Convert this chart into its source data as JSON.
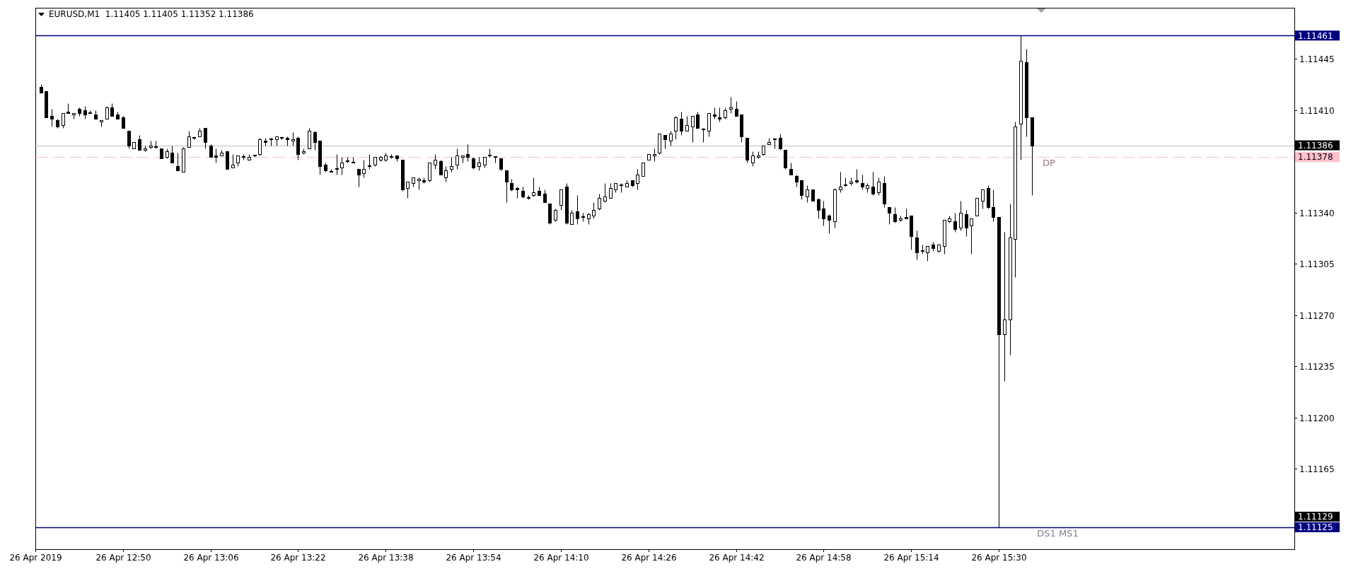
{
  "chart_data": {
    "type": "candlestick",
    "title": "EURUSD,M1  1.11405 1.11405 1.11352 1.11386",
    "color": "#000000",
    "x": [
      "2019-04-26T12:35",
      "2019-04-26T12:36",
      "2019-04-26T12:37",
      "2019-04-26T12:38",
      "2019-04-26T12:39",
      "2019-04-26T12:40",
      "2019-04-26T12:41",
      "2019-04-26T12:42",
      "2019-04-26T12:43",
      "2019-04-26T12:44",
      "2019-04-26T12:45",
      "2019-04-26T12:46",
      "2019-04-26T12:47",
      "2019-04-26T12:48",
      "2019-04-26T12:49",
      "2019-04-26T12:50",
      "2019-04-26T12:51",
      "2019-04-26T12:52",
      "2019-04-26T12:53",
      "2019-04-26T12:54",
      "2019-04-26T12:55",
      "2019-04-26T12:56",
      "2019-04-26T12:57",
      "2019-04-26T12:58",
      "2019-04-26T12:59",
      "2019-04-26T13:00",
      "2019-04-26T13:01",
      "2019-04-26T13:02",
      "2019-04-26T13:03",
      "2019-04-26T13:04",
      "2019-04-26T13:05",
      "2019-04-26T13:06",
      "2019-04-26T13:07",
      "2019-04-26T13:08",
      "2019-04-26T13:09",
      "2019-04-26T13:10",
      "2019-04-26T13:11",
      "2019-04-26T13:12",
      "2019-04-26T13:13",
      "2019-04-26T13:14",
      "2019-04-26T13:15",
      "2019-04-26T13:16",
      "2019-04-26T13:17",
      "2019-04-26T13:18",
      "2019-04-26T13:19",
      "2019-04-26T13:20",
      "2019-04-26T13:21",
      "2019-04-26T13:22",
      "2019-04-26T13:23",
      "2019-04-26T13:24",
      "2019-04-26T13:25",
      "2019-04-26T13:26",
      "2019-04-26T13:27",
      "2019-04-26T13:28",
      "2019-04-26T13:29",
      "2019-04-26T13:30",
      "2019-04-26T13:31",
      "2019-04-26T13:32",
      "2019-04-26T13:33",
      "2019-04-26T13:34",
      "2019-04-26T13:35",
      "2019-04-26T13:36",
      "2019-04-26T13:37",
      "2019-04-26T13:38",
      "2019-04-26T13:39",
      "2019-04-26T13:40",
      "2019-04-26T13:41",
      "2019-04-26T13:42",
      "2019-04-26T13:43",
      "2019-04-26T13:44",
      "2019-04-26T13:45",
      "2019-04-26T13:46",
      "2019-04-26T13:47",
      "2019-04-26T13:48",
      "2019-04-26T13:49",
      "2019-04-26T13:50",
      "2019-04-26T13:51",
      "2019-04-26T13:52",
      "2019-04-26T13:53",
      "2019-04-26T13:54",
      "2019-04-26T13:55",
      "2019-04-26T13:56",
      "2019-04-26T13:57",
      "2019-04-26T13:58",
      "2019-04-26T13:59",
      "2019-04-26T14:00",
      "2019-04-26T14:01",
      "2019-04-26T14:02",
      "2019-04-26T14:03",
      "2019-04-26T14:04",
      "2019-04-26T14:05",
      "2019-04-26T14:06",
      "2019-04-26T14:07",
      "2019-04-26T14:08",
      "2019-04-26T14:09",
      "2019-04-26T14:10",
      "2019-04-26T14:11",
      "2019-04-26T14:12",
      "2019-04-26T14:13",
      "2019-04-26T14:14",
      "2019-04-26T14:15",
      "2019-04-26T14:16",
      "2019-04-26T14:17",
      "2019-04-26T14:18",
      "2019-04-26T14:19",
      "2019-04-26T14:20",
      "2019-04-26T14:21",
      "2019-04-26T14:22",
      "2019-04-26T14:23",
      "2019-04-26T14:24",
      "2019-04-26T14:25",
      "2019-04-26T14:26",
      "2019-04-26T14:27",
      "2019-04-26T14:28",
      "2019-04-26T14:29",
      "2019-04-26T14:30",
      "2019-04-26T14:31",
      "2019-04-26T14:32",
      "2019-04-26T14:33",
      "2019-04-26T14:34",
      "2019-04-26T14:35",
      "2019-04-26T14:36",
      "2019-04-26T14:37",
      "2019-04-26T14:38",
      "2019-04-26T14:39",
      "2019-04-26T14:40",
      "2019-04-26T14:41",
      "2019-04-26T14:42",
      "2019-04-26T14:43",
      "2019-04-26T14:44",
      "2019-04-26T14:45",
      "2019-04-26T14:46",
      "2019-04-26T14:47",
      "2019-04-26T14:48",
      "2019-04-26T14:49",
      "2019-04-26T14:50",
      "2019-04-26T14:51",
      "2019-04-26T14:52",
      "2019-04-26T14:53",
      "2019-04-26T14:54",
      "2019-04-26T14:55",
      "2019-04-26T14:56",
      "2019-04-26T14:57",
      "2019-04-26T14:58",
      "2019-04-26T14:59",
      "2019-04-26T15:00",
      "2019-04-26T15:01",
      "2019-04-26T15:02",
      "2019-04-26T15:03",
      "2019-04-26T15:04",
      "2019-04-26T15:05",
      "2019-04-26T15:06",
      "2019-04-26T15:07",
      "2019-04-26T15:08",
      "2019-04-26T15:09",
      "2019-04-26T15:10",
      "2019-04-26T15:11",
      "2019-04-26T15:12",
      "2019-04-26T15:13",
      "2019-04-26T15:14",
      "2019-04-26T15:15",
      "2019-04-26T15:16",
      "2019-04-26T15:17",
      "2019-04-26T15:18",
      "2019-04-26T15:19",
      "2019-04-26T15:20",
      "2019-04-26T15:21",
      "2019-04-26T15:22",
      "2019-04-26T15:23",
      "2019-04-26T15:24",
      "2019-04-26T15:25",
      "2019-04-26T15:26",
      "2019-04-26T15:27",
      "2019-04-26T15:28",
      "2019-04-26T15:29",
      "2019-04-26T15:30",
      "2019-04-26T15:31",
      "2019-04-26T15:32",
      "2019-04-26T15:33",
      "2019-04-26T15:34",
      "2019-04-26T15:35",
      "2019-04-26T15:36"
    ],
    "ohlc": [
      [
        1.11426,
        1.11428,
        1.11422,
        1.11422
      ],
      [
        1.11423,
        1.11423,
        1.11405,
        1.11405
      ],
      [
        1.11406,
        1.11411,
        1.11399,
        1.11404
      ],
      [
        1.11403,
        1.11404,
        1.11398,
        1.11399
      ],
      [
        1.114,
        1.11408,
        1.11398,
        1.11408
      ],
      [
        1.11409,
        1.11415,
        1.11408,
        1.11408
      ],
      [
        1.11407,
        1.11408,
        1.11404,
        1.11408
      ],
      [
        1.11411,
        1.11412,
        1.11406,
        1.11408
      ],
      [
        1.1141,
        1.11413,
        1.11404,
        1.11407
      ],
      [
        1.11408,
        1.1141,
        1.11408,
        1.11408
      ],
      [
        1.11407,
        1.1141,
        1.11404,
        1.11404
      ],
      [
        1.11402,
        1.11403,
        1.11399,
        1.11403
      ],
      [
        1.11404,
        1.11413,
        1.11404,
        1.11412
      ],
      [
        1.11412,
        1.11415,
        1.11406,
        1.11406
      ],
      [
        1.11407,
        1.11409,
        1.11404,
        1.11404
      ],
      [
        1.11405,
        1.11406,
        1.11398,
        1.11398
      ],
      [
        1.11396,
        1.11396,
        1.11384,
        1.11386
      ],
      [
        1.11384,
        1.11388,
        1.11384,
        1.11388
      ],
      [
        1.1139,
        1.11393,
        1.11383,
        1.11383
      ],
      [
        1.11383,
        1.11386,
        1.11382,
        1.11384
      ],
      [
        1.11385,
        1.11389,
        1.11384,
        1.11386
      ],
      [
        1.11385,
        1.11389,
        1.11384,
        1.11385
      ],
      [
        1.11384,
        1.11384,
        1.11377,
        1.11377
      ],
      [
        1.11378,
        1.11384,
        1.11377,
        1.11382
      ],
      [
        1.11381,
        1.11386,
        1.11374,
        1.11374
      ],
      [
        1.11372,
        1.11381,
        1.11369,
        1.11369
      ],
      [
        1.11368,
        1.11385,
        1.11368,
        1.11384
      ],
      [
        1.11385,
        1.11396,
        1.11385,
        1.11392
      ],
      [
        1.11391,
        1.11392,
        1.1139,
        1.11391
      ],
      [
        1.11392,
        1.11398,
        1.11392,
        1.11396
      ],
      [
        1.11398,
        1.11398,
        1.11384,
        1.11388
      ],
      [
        1.11386,
        1.11387,
        1.11378,
        1.11378
      ],
      [
        1.11379,
        1.11384,
        1.11374,
        1.11378
      ],
      [
        1.11379,
        1.11383,
        1.11379,
        1.11381
      ],
      [
        1.11382,
        1.11382,
        1.1137,
        1.1137
      ],
      [
        1.11371,
        1.1138,
        1.11371,
        1.11373
      ],
      [
        1.11374,
        1.11379,
        1.11372,
        1.11379
      ],
      [
        1.11378,
        1.1138,
        1.11376,
        1.11378
      ],
      [
        1.11376,
        1.1138,
        1.11376,
        1.11378
      ],
      [
        1.11379,
        1.11379,
        1.11378,
        1.11379
      ],
      [
        1.1138,
        1.11391,
        1.11379,
        1.1139
      ],
      [
        1.11389,
        1.11391,
        1.11386,
        1.11388
      ],
      [
        1.1139,
        1.11391,
        1.11386,
        1.1139
      ],
      [
        1.1139,
        1.11392,
        1.11386,
        1.11392
      ],
      [
        1.11391,
        1.11392,
        1.1139,
        1.11391
      ],
      [
        1.11391,
        1.11392,
        1.11386,
        1.1139
      ],
      [
        1.11389,
        1.11395,
        1.11386,
        1.1139
      ],
      [
        1.11391,
        1.11392,
        1.11376,
        1.1138
      ],
      [
        1.11381,
        1.11384,
        1.1138,
        1.11382
      ],
      [
        1.11384,
        1.11398,
        1.11384,
        1.11396
      ],
      [
        1.11395,
        1.11396,
        1.11383,
        1.11388
      ],
      [
        1.11389,
        1.11389,
        1.11366,
        1.11372
      ],
      [
        1.11373,
        1.11374,
        1.11368,
        1.11369
      ],
      [
        1.11368,
        1.1137,
        1.11368,
        1.11368
      ],
      [
        1.1137,
        1.1138,
        1.11366,
        1.1137
      ],
      [
        1.11371,
        1.11378,
        1.11366,
        1.11374
      ],
      [
        1.11375,
        1.11378,
        1.11374,
        1.11375
      ],
      [
        1.11374,
        1.11378,
        1.11374,
        1.11374
      ],
      [
        1.1137,
        1.1137,
        1.11358,
        1.11366
      ],
      [
        1.11367,
        1.11376,
        1.11364,
        1.1137
      ],
      [
        1.11372,
        1.1138,
        1.1137,
        1.11372
      ],
      [
        1.11373,
        1.11378,
        1.11372,
        1.11378
      ],
      [
        1.11376,
        1.11379,
        1.11375,
        1.11378
      ],
      [
        1.11376,
        1.11381,
        1.11375,
        1.11379
      ],
      [
        1.11378,
        1.1138,
        1.11377,
        1.11378
      ],
      [
        1.11379,
        1.11379,
        1.11375,
        1.11377
      ],
      [
        1.11376,
        1.11376,
        1.11355,
        1.11356
      ],
      [
        1.11357,
        1.11361,
        1.1135,
        1.11361
      ],
      [
        1.1136,
        1.11364,
        1.11358,
        1.11364
      ],
      [
        1.11362,
        1.11364,
        1.11356,
        1.11363
      ],
      [
        1.11362,
        1.11364,
        1.1136,
        1.11361
      ],
      [
        1.11362,
        1.11374,
        1.11361,
        1.11374
      ],
      [
        1.11373,
        1.1138,
        1.1137,
        1.11376
      ],
      [
        1.11375,
        1.11376,
        1.11366,
        1.11366
      ],
      [
        1.11364,
        1.11372,
        1.11361,
        1.11369
      ],
      [
        1.1137,
        1.11378,
        1.11368,
        1.11372
      ],
      [
        1.11373,
        1.11384,
        1.1137,
        1.11379
      ],
      [
        1.11378,
        1.11379,
        1.11374,
        1.11379
      ],
      [
        1.1138,
        1.11387,
        1.11375,
        1.11378
      ],
      [
        1.11377,
        1.11378,
        1.1137,
        1.11371
      ],
      [
        1.11372,
        1.11378,
        1.11369,
        1.11374
      ],
      [
        1.11373,
        1.11378,
        1.11371,
        1.11378
      ],
      [
        1.11379,
        1.11384,
        1.11378,
        1.11379
      ],
      [
        1.11378,
        1.11378,
        1.11374,
        1.11378
      ],
      [
        1.11377,
        1.11377,
        1.11369,
        1.1137
      ],
      [
        1.11369,
        1.11369,
        1.11347,
        1.11361
      ],
      [
        1.1136,
        1.11363,
        1.11355,
        1.11356
      ],
      [
        1.11357,
        1.11358,
        1.1135,
        1.11356
      ],
      [
        1.11355,
        1.11358,
        1.1135,
        1.11351
      ],
      [
        1.1135,
        1.11352,
        1.11349,
        1.1135
      ],
      [
        1.11352,
        1.11364,
        1.11351,
        1.11354
      ],
      [
        1.11355,
        1.11358,
        1.11352,
        1.11352
      ],
      [
        1.11353,
        1.11356,
        1.11347,
        1.11347
      ],
      [
        1.11346,
        1.11346,
        1.11332,
        1.11333
      ],
      [
        1.11335,
        1.11343,
        1.11334,
        1.11342
      ],
      [
        1.11345,
        1.11356,
        1.11342,
        1.11356
      ],
      [
        1.11358,
        1.1136,
        1.11332,
        1.11333
      ],
      [
        1.11332,
        1.11342,
        1.11332,
        1.1134
      ],
      [
        1.11341,
        1.11352,
        1.11332,
        1.11336
      ],
      [
        1.11337,
        1.1134,
        1.11334,
        1.11337
      ],
      [
        1.11336,
        1.1134,
        1.11332,
        1.11339
      ],
      [
        1.11338,
        1.11347,
        1.11336,
        1.11342
      ],
      [
        1.11343,
        1.11353,
        1.11342,
        1.1135
      ],
      [
        1.11348,
        1.1136,
        1.11347,
        1.11351
      ],
      [
        1.1135,
        1.1136,
        1.1135,
        1.11357
      ],
      [
        1.11356,
        1.1136,
        1.11354,
        1.1136
      ],
      [
        1.11359,
        1.1136,
        1.11354,
        1.11359
      ],
      [
        1.11358,
        1.11362,
        1.11358,
        1.1136
      ],
      [
        1.11362,
        1.11362,
        1.11358,
        1.11359
      ],
      [
        1.1136,
        1.1137,
        1.11356,
        1.11366
      ],
      [
        1.11365,
        1.11374,
        1.11365,
        1.11374
      ],
      [
        1.11376,
        1.1138,
        1.11376,
        1.1138
      ],
      [
        1.11379,
        1.11384,
        1.11375,
        1.1138
      ],
      [
        1.11381,
        1.11394,
        1.1138,
        1.11394
      ],
      [
        1.11393,
        1.11393,
        1.11384,
        1.1139
      ],
      [
        1.11389,
        1.11396,
        1.11386,
        1.11394
      ],
      [
        1.11396,
        1.11406,
        1.1139,
        1.11405
      ],
      [
        1.11404,
        1.11409,
        1.11393,
        1.11396
      ],
      [
        1.11396,
        1.11406,
        1.11396,
        1.114
      ],
      [
        1.11399,
        1.11406,
        1.11388,
        1.11406
      ],
      [
        1.11407,
        1.11409,
        1.11398,
        1.11398
      ],
      [
        1.11397,
        1.11398,
        1.11388,
        1.11397
      ],
      [
        1.11396,
        1.11408,
        1.11392,
        1.11408
      ],
      [
        1.11407,
        1.11412,
        1.11404,
        1.11406
      ],
      [
        1.11405,
        1.11412,
        1.11402,
        1.11404
      ],
      [
        1.11405,
        1.11412,
        1.11404,
        1.1141
      ],
      [
        1.11411,
        1.11419,
        1.11408,
        1.11412
      ],
      [
        1.11411,
        1.11416,
        1.11406,
        1.11406
      ],
      [
        1.11407,
        1.11407,
        1.11388,
        1.11392
      ],
      [
        1.11391,
        1.11391,
        1.11374,
        1.11376
      ],
      [
        1.11374,
        1.11382,
        1.11372,
        1.11379
      ],
      [
        1.11378,
        1.11382,
        1.11377,
        1.11379
      ],
      [
        1.1138,
        1.11386,
        1.11379,
        1.11386
      ],
      [
        1.11387,
        1.11391,
        1.11387,
        1.11388
      ],
      [
        1.1139,
        1.11391,
        1.11384,
        1.1139
      ],
      [
        1.11391,
        1.11394,
        1.11383,
        1.11384
      ],
      [
        1.11383,
        1.11383,
        1.1137,
        1.11371
      ],
      [
        1.1137,
        1.11374,
        1.11366,
        1.11366
      ],
      [
        1.11365,
        1.11366,
        1.11358,
        1.11361
      ],
      [
        1.11362,
        1.11362,
        1.11349,
        1.11352
      ],
      [
        1.11351,
        1.11359,
        1.11347,
        1.11356
      ],
      [
        1.11356,
        1.11356,
        1.11348,
        1.11348
      ],
      [
        1.11349,
        1.1135,
        1.11336,
        1.11342
      ],
      [
        1.11343,
        1.11348,
        1.11331,
        1.11336
      ],
      [
        1.11338,
        1.11339,
        1.11326,
        1.11335
      ],
      [
        1.11334,
        1.11357,
        1.1133,
        1.11356
      ],
      [
        1.11356,
        1.11368,
        1.11354,
        1.11358
      ],
      [
        1.11359,
        1.11364,
        1.11358,
        1.11359
      ],
      [
        1.1136,
        1.11364,
        1.11359,
        1.11361
      ],
      [
        1.11362,
        1.1137,
        1.1136,
        1.11361
      ],
      [
        1.1136,
        1.11366,
        1.11356,
        1.11358
      ],
      [
        1.11357,
        1.1136,
        1.11354,
        1.11359
      ],
      [
        1.11358,
        1.11368,
        1.11352,
        1.11353
      ],
      [
        1.11354,
        1.11364,
        1.11352,
        1.11361
      ],
      [
        1.1136,
        1.11365,
        1.11344,
        1.11346
      ],
      [
        1.11344,
        1.11344,
        1.11332,
        1.1134
      ],
      [
        1.11339,
        1.11344,
        1.11333,
        1.11334
      ],
      [
        1.11335,
        1.11338,
        1.11334,
        1.11336
      ],
      [
        1.11337,
        1.11343,
        1.11336,
        1.11336
      ],
      [
        1.11338,
        1.11338,
        1.11315,
        1.11324
      ],
      [
        1.11323,
        1.11328,
        1.11308,
        1.11313
      ],
      [
        1.11314,
        1.11318,
        1.11312,
        1.11314
      ],
      [
        1.11313,
        1.11317,
        1.11307,
        1.11317
      ],
      [
        1.11318,
        1.1132,
        1.11314,
        1.11316
      ],
      [
        1.11314,
        1.11318,
        1.11313,
        1.11318
      ],
      [
        1.11317,
        1.11335,
        1.11312,
        1.11335
      ],
      [
        1.11334,
        1.11338,
        1.11333,
        1.11336
      ],
      [
        1.11334,
        1.1134,
        1.11327,
        1.11329
      ],
      [
        1.1133,
        1.11348,
        1.11328,
        1.1134
      ],
      [
        1.11339,
        1.11342,
        1.11324,
        1.1133
      ],
      [
        1.11331,
        1.11336,
        1.11312,
        1.11336
      ],
      [
        1.11338,
        1.1135,
        1.11338,
        1.1135
      ],
      [
        1.11348,
        1.11356,
        1.11343,
        1.11356
      ],
      [
        1.11357,
        1.11359,
        1.11343,
        1.11344
      ],
      [
        1.11344,
        1.11356,
        1.11334,
        1.11337
      ],
      [
        1.11337,
        1.11337,
        1.11125,
        1.11257
      ],
      [
        1.11257,
        1.11327,
        1.11225,
        1.11267
      ],
      [
        1.11267,
        1.11346,
        1.11243,
        1.11323
      ],
      [
        1.11322,
        1.11402,
        1.11296,
        1.11399
      ],
      [
        1.11401,
        1.11461,
        1.11376,
        1.11444
      ],
      [
        1.11443,
        1.11452,
        1.11392,
        1.11405
      ],
      [
        1.11405,
        1.11405,
        1.11352,
        1.11386
      ]
    ],
    "xlim": [
      "2019-04-26T12:34",
      "2019-04-26T16:24"
    ],
    "xticks": [
      {
        "value": "2019-04-26T12:34",
        "label": "26 Apr 2019"
      },
      {
        "value": "2019-04-26T12:50",
        "label": "26 Apr 12:50"
      },
      {
        "value": "2019-04-26T13:06",
        "label": "26 Apr 13:06"
      },
      {
        "value": "2019-04-26T13:22",
        "label": "26 Apr 13:22"
      },
      {
        "value": "2019-04-26T13:38",
        "label": "26 Apr 13:38"
      },
      {
        "value": "2019-04-26T13:54",
        "label": "26 Apr 13:54"
      },
      {
        "value": "2019-04-26T14:10",
        "label": "26 Apr 14:10"
      },
      {
        "value": "2019-04-26T14:26",
        "label": "26 Apr 14:26"
      },
      {
        "value": "2019-04-26T14:42",
        "label": "26 Apr 14:42"
      },
      {
        "value": "2019-04-26T14:58",
        "label": "26 Apr 14:58"
      },
      {
        "value": "2019-04-26T15:14",
        "label": "26 Apr 15:14"
      },
      {
        "value": "2019-04-26T15:30",
        "label": "26 Apr 15:30"
      }
    ],
    "ylim": [
      1.1111,
      1.1148
    ],
    "yticks": [
      {
        "value": 1.11165,
        "label": "1.11165"
      },
      {
        "value": 1.112,
        "label": "1.11200"
      },
      {
        "value": 1.11235,
        "label": "1.11235"
      },
      {
        "value": 1.1127,
        "label": "1.11270"
      },
      {
        "value": 1.11305,
        "label": "1.11305"
      },
      {
        "value": 1.1134,
        "label": "1.11340"
      },
      {
        "value": 1.1141,
        "label": "1.11410"
      },
      {
        "value": 1.11445,
        "label": "1.11445"
      }
    ],
    "ref_lines": [
      {
        "axis": "y",
        "value": 1.11461,
        "label": "1.11461",
        "color": "#000080"
      },
      {
        "axis": "y",
        "value": 1.11386,
        "label": "1.11386",
        "color": "#c0c0c0"
      },
      {
        "axis": "y",
        "value": 1.11378,
        "label": "1.11378",
        "color": "#ffc0cb",
        "line_style": "dashed"
      },
      {
        "axis": "y",
        "value": 1.11125,
        "label": "1.11125",
        "color": "#000080"
      }
    ],
    "annotations": [
      {
        "text": "DP",
        "x": "2019-04-26T15:38",
        "y": 1.11378
      },
      {
        "text": "DS1 MS1",
        "x": "2019-04-26T15:37",
        "y": 1.11125
      },
      "1.11129"
    ]
  }
}
